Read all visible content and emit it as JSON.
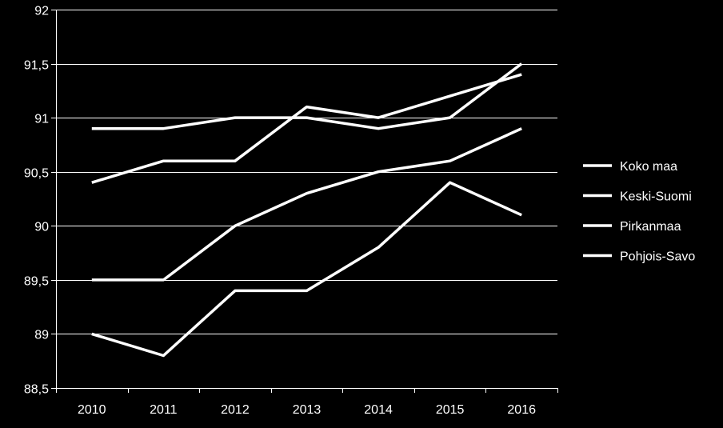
{
  "chart_data": {
    "type": "line",
    "title": "",
    "xlabel": "",
    "ylabel": "",
    "categories": [
      "2010",
      "2011",
      "2012",
      "2013",
      "2014",
      "2015",
      "2016"
    ],
    "ylim": [
      88.5,
      92
    ],
    "yticks": [
      88.5,
      89,
      89.5,
      90,
      90.5,
      91,
      91.5,
      92
    ],
    "ytick_labels": [
      "88,5",
      "89",
      "89,5",
      "90",
      "90,5",
      "91",
      "91,5",
      "92"
    ],
    "grid": true,
    "legend_position": "right",
    "series": [
      {
        "name": "Koko maa",
        "values": [
          89.5,
          89.5,
          90.0,
          90.3,
          90.5,
          90.6,
          90.9
        ]
      },
      {
        "name": "Keski-Suomi",
        "values": [
          90.4,
          90.6,
          90.6,
          91.1,
          91.0,
          91.2,
          91.4
        ]
      },
      {
        "name": "Pirkanmaa",
        "values": [
          90.9,
          90.9,
          91.0,
          91.0,
          90.9,
          91.0,
          91.5
        ]
      },
      {
        "name": "Pohjois-Savo",
        "values": [
          89.0,
          88.8,
          89.4,
          89.4,
          89.8,
          90.4,
          90.1
        ]
      }
    ],
    "colors": {
      "background": "#000000",
      "text": "#ffffff",
      "grid": "#ffffff",
      "series": "#ffffff"
    }
  }
}
